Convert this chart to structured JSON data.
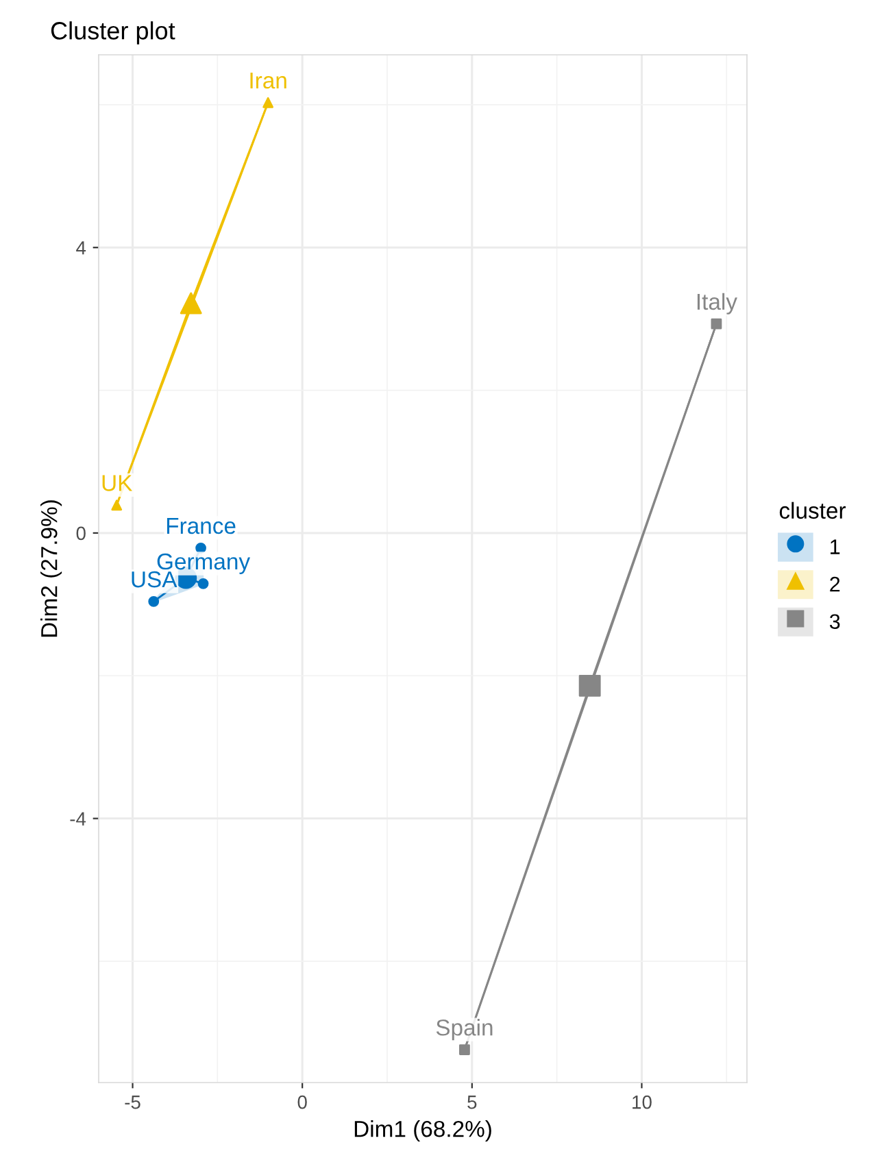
{
  "chart_data": {
    "type": "scatter",
    "title": "Cluster plot",
    "xlabel": "Dim1 (68.2%)",
    "ylabel": "Dim2 (27.9%)",
    "legend_title": "cluster",
    "legend": "right",
    "grid": true,
    "xlim": [
      -6.0,
      13.1
    ],
    "ylim": [
      -7.7,
      6.7
    ],
    "xticks": [
      -5,
      0,
      5,
      10
    ],
    "yticks": [
      -4,
      0,
      4
    ],
    "series": [
      {
        "name": "1",
        "color": "#0073c2",
        "marker": "circle",
        "x": [
          -2.99,
          -2.92,
          -4.38
        ],
        "values": [
          -0.21,
          -0.71,
          -0.96
        ]
      },
      {
        "name": "2",
        "color": "#efc000",
        "marker": "triangle",
        "x": [
          -1.01,
          -5.47
        ],
        "values": [
          6.03,
          0.39
        ]
      },
      {
        "name": "3",
        "color": "#868686",
        "marker": "square",
        "x": [
          12.2,
          4.78
        ],
        "values": [
          2.93,
          -7.24
        ]
      },
      {
        "color": "#0073c2",
        "marker": "circle",
        "x": [
          -3.43
        ],
        "values": [
          -0.63
        ]
      },
      {
        "color": "#efc000",
        "marker": "triangle",
        "x": [
          -3.28
        ],
        "values": [
          3.22
        ]
      },
      {
        "color": "#868686",
        "marker": "square",
        "x": [
          8.47
        ],
        "values": [
          -2.14
        ]
      }
    ],
    "annotations": [
      {
        "text": "France",
        "x": -2.99,
        "y": -0.21
      },
      {
        "text": "Germany",
        "x": -2.92,
        "y": -0.71
      },
      {
        "text": "USA",
        "x": -4.38,
        "y": -0.96
      },
      {
        "text": "Iran",
        "x": -1.01,
        "y": 6.03
      },
      {
        "text": "UK",
        "x": -5.47,
        "y": 0.39
      },
      {
        "text": "Italy",
        "x": 12.2,
        "y": 2.93
      },
      {
        "text": "Spain",
        "x": 4.78,
        "y": -7.24
      }
    ]
  }
}
